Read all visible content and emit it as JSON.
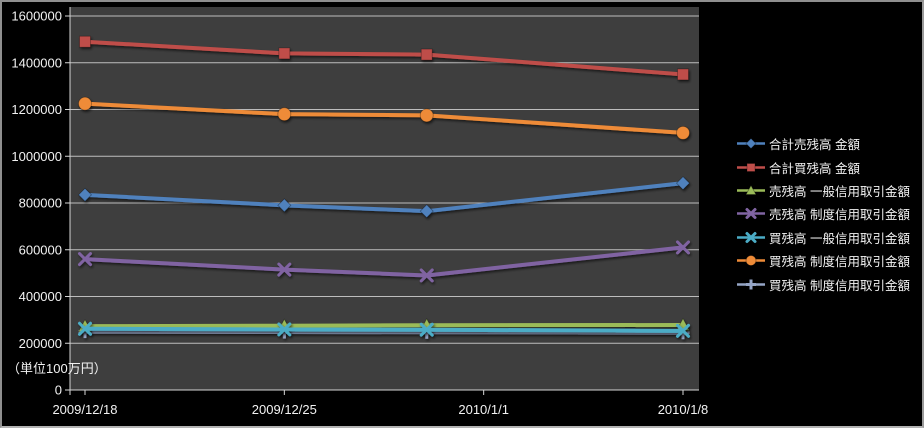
{
  "unit_label": "（単位100万円）",
  "colors": {
    "background": "#000000",
    "plot_background": "#3e3e3e",
    "gridline": "#bdbdbd",
    "axis_line": "#d6d6d6",
    "text": "#f2f2f2",
    "frame_border": "#9a9a9a"
  },
  "chart_data": {
    "type": "line",
    "title": "",
    "xlabel": "",
    "ylabel": "（単位100万円）",
    "ylim": [
      0,
      1600000
    ],
    "y_tick_step": 200000,
    "y_tick_labels": [
      "0",
      "200000",
      "400000",
      "600000",
      "800000",
      "1000000",
      "1200000",
      "1400000",
      "1600000"
    ],
    "x_tick_labels": [
      "2009/12/18",
      "2009/12/25",
      "2010/1/1",
      "2010/1/8"
    ],
    "x_tick_days": [
      0,
      7,
      14,
      21
    ],
    "x_point_dates": [
      "2009/12/18",
      "2009/12/25",
      "2009/12/30",
      "2010/1/8"
    ],
    "x_point_days": [
      0,
      7,
      12,
      21
    ],
    "grid": true,
    "legend_position": "right",
    "series": [
      {
        "name": "合計売残高 金額",
        "color": "#4f81bd",
        "marker": "diamond",
        "values": [
          835000,
          790000,
          765000,
          885000
        ]
      },
      {
        "name": "合計買残高 金額",
        "color": "#bf4e4a",
        "marker": "square",
        "values": [
          1490000,
          1440000,
          1435000,
          1350000
        ]
      },
      {
        "name": "売残高 一般信用取引金額",
        "color": "#9bbb59",
        "marker": "triangle",
        "values": [
          273000,
          275000,
          277000,
          278000
        ]
      },
      {
        "name": "売残高 制度信用取引金額",
        "color": "#8064a2",
        "marker": "x",
        "values": [
          560000,
          515000,
          490000,
          610000
        ]
      },
      {
        "name": "買残高 一般信用取引金額",
        "color": "#4bacc6",
        "marker": "x",
        "values": [
          262000,
          259000,
          258000,
          253000
        ]
      },
      {
        "name": "買残高 制度信用取引金額",
        "color": "#ee8b38",
        "marker": "circle",
        "values": [
          1225000,
          1180000,
          1175000,
          1100000
        ]
      },
      {
        "name": "買残高 制度信用取引金額",
        "color": "#95a5c6",
        "marker": "plus",
        "values": [
          250000,
          248000,
          247000,
          245000
        ]
      }
    ]
  }
}
